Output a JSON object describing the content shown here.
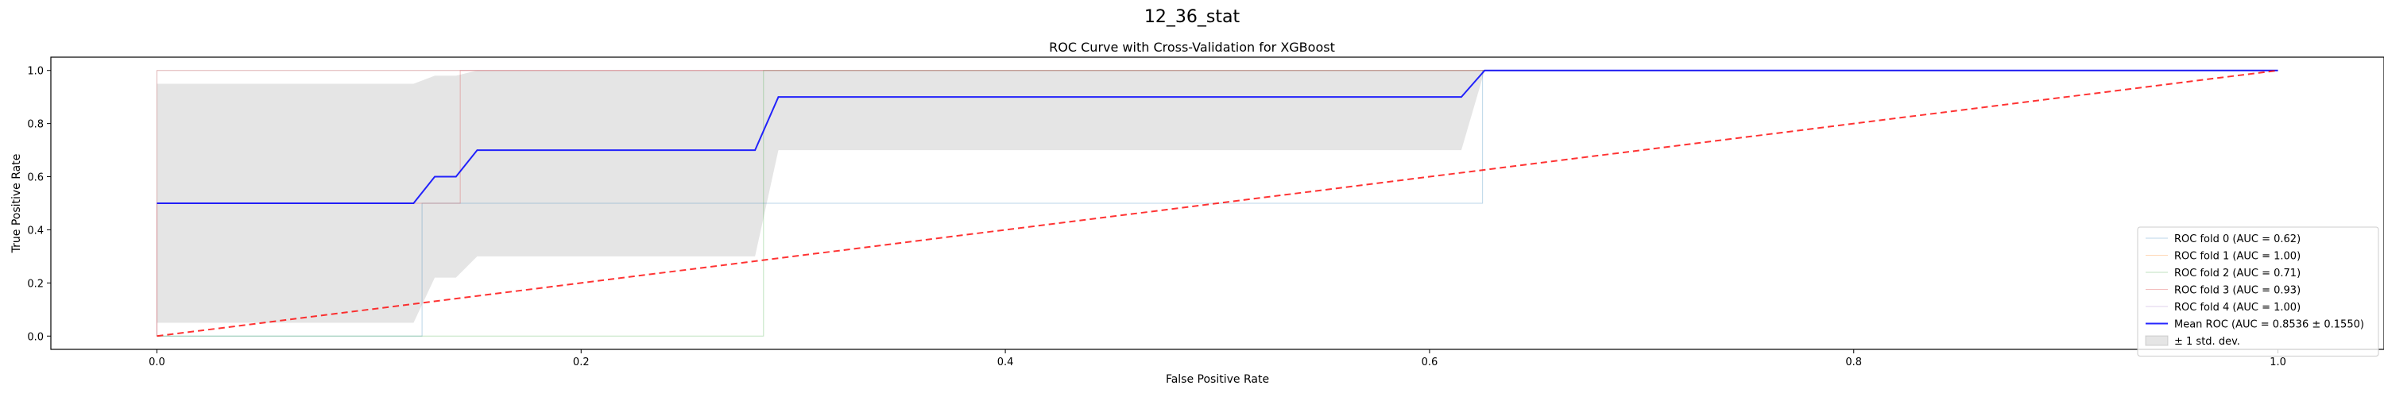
{
  "suptitle": "12_36_stat",
  "chart_data": {
    "type": "line",
    "title": "ROC Curve with Cross-Validation for XGBoost",
    "xlabel": "False Positive Rate",
    "ylabel": "True Positive Rate",
    "xlim": [
      -0.05,
      1.05
    ],
    "ylim": [
      -0.05,
      1.05
    ],
    "xticks": [
      0.0,
      0.2,
      0.4,
      0.6,
      0.8,
      1.0
    ],
    "yticks": [
      0.0,
      0.2,
      0.4,
      0.6,
      0.8,
      1.0
    ],
    "xtick_labels": [
      "0.0",
      "0.2",
      "0.4",
      "0.6",
      "0.8",
      "1.0"
    ],
    "ytick_labels": [
      "0.0",
      "0.2",
      "0.4",
      "0.6",
      "0.8",
      "1.0"
    ],
    "grid": false,
    "legend_position": "lower-right",
    "series": [
      {
        "name": "ROC fold 0 (AUC = 0.62)",
        "color": "#1f77b4",
        "x": [
          0,
          0.125,
          0.125,
          0.625,
          0.625,
          1.0
        ],
        "y": [
          0,
          0,
          0.5,
          0.5,
          1.0,
          1.0
        ]
      },
      {
        "name": "ROC fold 1 (AUC = 1.00)",
        "color": "#ff7f0e",
        "x": [
          0,
          0,
          1.0
        ],
        "y": [
          0,
          1.0,
          1.0
        ]
      },
      {
        "name": "ROC fold 2 (AUC = 0.71)",
        "color": "#2ca02c",
        "x": [
          0,
          0.286,
          0.286,
          1.0
        ],
        "y": [
          0,
          0,
          1.0,
          1.0
        ]
      },
      {
        "name": "ROC fold 3 (AUC = 0.93)",
        "color": "#d62728",
        "x": [
          0,
          0,
          0.143,
          0.143,
          1.0
        ],
        "y": [
          0,
          0.5,
          0.5,
          1.0,
          1.0
        ]
      },
      {
        "name": "ROC fold 4 (AUC = 1.00)",
        "color": "#9467bd",
        "x": [
          0,
          0,
          1.0
        ],
        "y": [
          0,
          1.0,
          1.0
        ]
      },
      {
        "name": "Mean ROC (AUC = 0.8536 ± 0.1550)",
        "color": "#0000ff",
        "x": [
          0,
          0.121,
          0.131,
          0.141,
          0.151,
          0.282,
          0.293,
          0.615,
          0.626,
          1.0
        ],
        "y": [
          0.5,
          0.5,
          0.6,
          0.6,
          0.7,
          0.7,
          0.9,
          0.9,
          1.0,
          1.0
        ]
      }
    ],
    "std_band": {
      "name": "± 1 std. dev.",
      "color": "#a9a9a9",
      "x": [
        0,
        0.121,
        0.131,
        0.141,
        0.151,
        0.282,
        0.293,
        0.615,
        0.626,
        1.0
      ],
      "upper": [
        0.95,
        0.95,
        0.98,
        0.98,
        1.0,
        1.0,
        1.0,
        1.0,
        1.0,
        1.0
      ],
      "lower": [
        0.05,
        0.05,
        0.22,
        0.22,
        0.3,
        0.3,
        0.7,
        0.7,
        1.0,
        1.0
      ]
    },
    "chance_line": {
      "color": "#ff0000",
      "x": [
        0,
        1
      ],
      "y": [
        0,
        1
      ]
    }
  }
}
